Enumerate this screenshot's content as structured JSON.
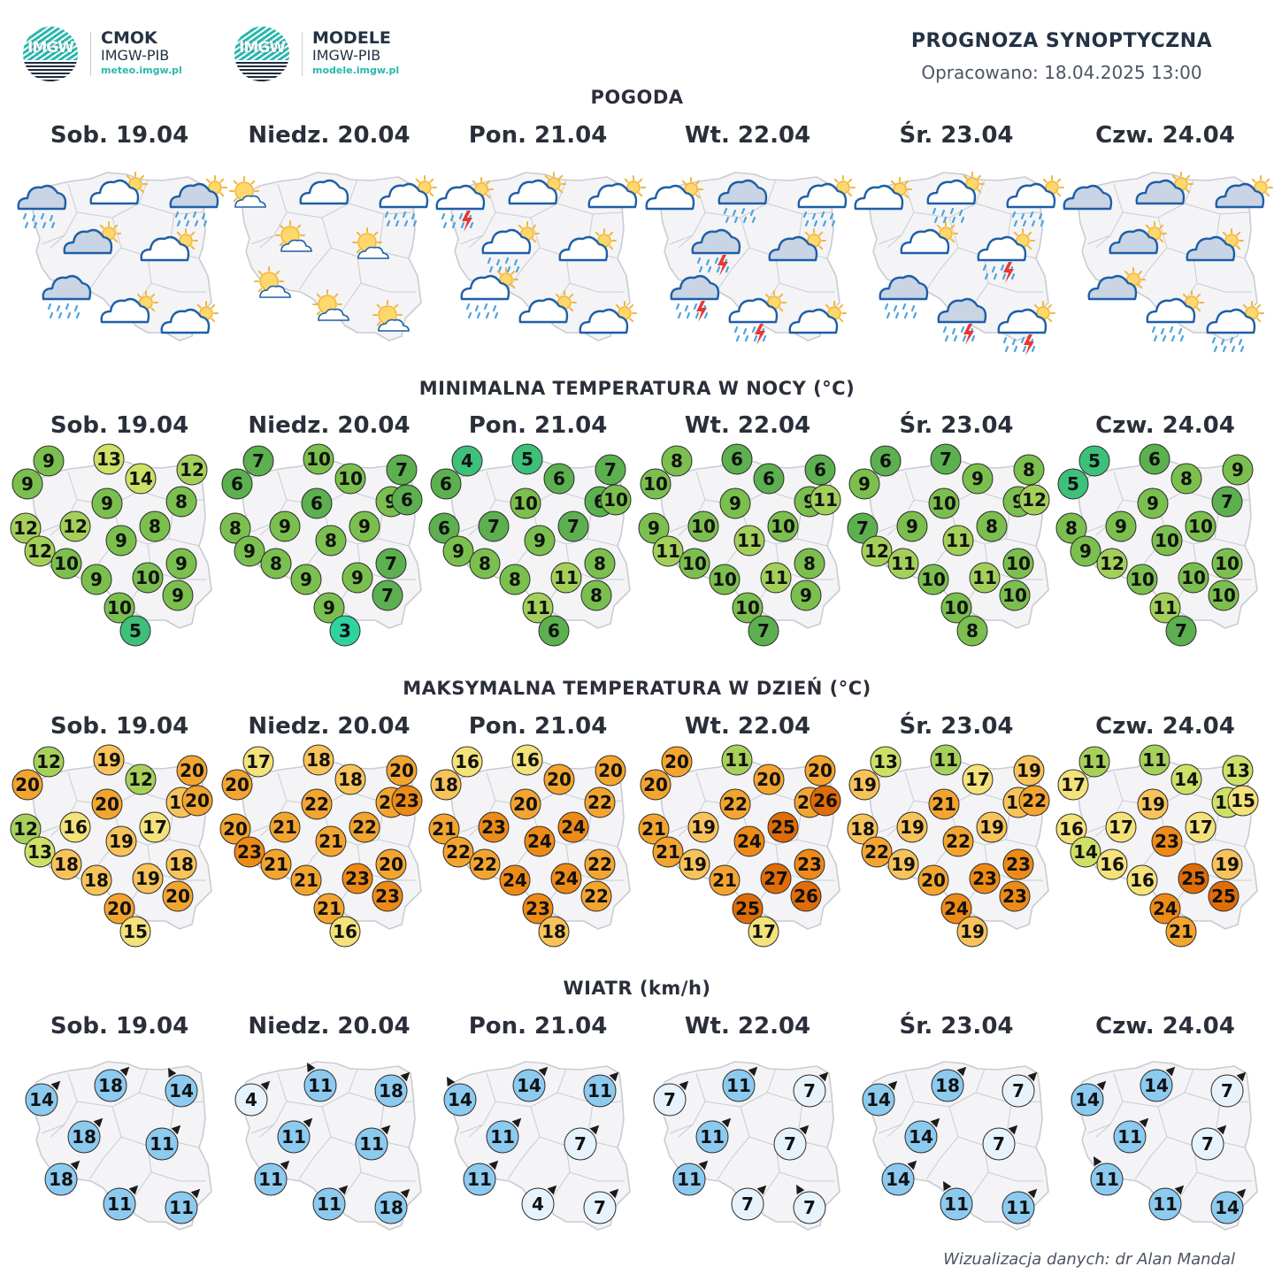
{
  "logos": [
    {
      "mark": "IMGW",
      "title": "CMOK",
      "subtitle": "IMGW-PIB",
      "url": "meteo.imgw.pl"
    },
    {
      "mark": "IMGW",
      "title": "MODELE",
      "subtitle": "IMGW-PIB",
      "url": "modele.imgw.pl"
    }
  ],
  "header": {
    "title": "PROGNOZA SYNOPTYCZNA",
    "prepared": "Opracowano: 18.04.2025 13:00"
  },
  "days": [
    "Sob. 19.04",
    "Niedz. 20.04",
    "Pon. 21.04",
    "Wt. 22.04",
    "Śr. 23.04",
    "Czw. 24.04"
  ],
  "sections": {
    "weather": "POGODA",
    "tmin": "MINIMALNA TEMPERATURA W NOCY (°C)",
    "tmax": "MAKSYMALNA TEMPERATURA W DZIEŃ (°C)",
    "wind": "WIATR (km/h)"
  },
  "credit": "Wizualizacja danych: dr Alan Mandal",
  "colors": {
    "map_fill": "#f4f4f6",
    "map_border": "#c9ccd2",
    "cloud_light": "#ffffff",
    "cloud_dark": "#c9d4e4",
    "cloud_outline": "#1d5fa8",
    "sun": "#f2b63c",
    "rain": "#4aa3e0",
    "lightning": "#e53935",
    "wind_light": "#e6f3fc",
    "wind_mid": "#8ccaf0",
    "tmin_scale": [
      "#2fd3a0",
      "#3dc07a",
      "#5cb04f",
      "#7bbf4e",
      "#a4d05a",
      "#cfe066"
    ],
    "tmax_scale": [
      "#a7d15a",
      "#cfe066",
      "#f4e27a",
      "#f7c35a",
      "#f3a52f",
      "#ee8a16",
      "#e06c07"
    ]
  },
  "chart_data": [
    {
      "type": "map-icons",
      "section": "POGODA",
      "days": [
        {
          "day": "Sob. 19.04",
          "icons": [
            "cloud-rain-dark",
            "cloud-sun",
            "cloud-sun-rain-dark",
            "cloud-sun-dark",
            "cloud-sun",
            "cloud-rain-dark",
            "cloud-sun",
            "cloud-sun"
          ]
        },
        {
          "day": "Niedz. 20.04",
          "icons": [
            "sun-cloud",
            "cloud",
            "cloud-sun-rain",
            "sun-cloud",
            "sun-cloud",
            "sun-cloud",
            "sun-cloud",
            "sun-cloud"
          ]
        },
        {
          "day": "Pon. 21.04",
          "icons": [
            "cloud-sun-rain-storm",
            "cloud-sun",
            "cloud-sun",
            "cloud-sun-rain",
            "cloud-sun",
            "cloud-sun-rain",
            "cloud-sun",
            "cloud-sun"
          ]
        },
        {
          "day": "Wt. 22.04",
          "icons": [
            "cloud-sun",
            "cloud-rain-dark",
            "cloud-sun-rain",
            "cloud-rain-dark-storm",
            "cloud-sun-dark",
            "cloud-rain-dark-storm",
            "cloud-sun-rain-storm",
            "cloud-sun"
          ]
        },
        {
          "day": "Śr. 23.04",
          "icons": [
            "cloud-sun",
            "cloud-sun-rain",
            "cloud-sun-rain",
            "cloud-sun",
            "cloud-sun-rain-storm",
            "cloud-rain-dark",
            "cloud-rain-dark-storm",
            "cloud-sun-rain-storm"
          ]
        },
        {
          "day": "Czw. 24.04",
          "icons": [
            "cloud-dark",
            "cloud-sun-dark",
            "cloud-sun-dark",
            "cloud-sun-dark",
            "cloud-sun-dark",
            "cloud-sun-dark",
            "cloud-sun-rain",
            "cloud-sun-rain"
          ]
        }
      ]
    },
    {
      "type": "map-values",
      "section": "MINIMALNA TEMPERATURA W NOCY (°C)",
      "unit": "°C",
      "days": [
        {
          "day": "Sob. 19.04",
          "values": [
            9,
            13,
            12,
            9,
            14,
            8,
            9,
            12,
            12,
            8,
            12,
            9,
            9,
            10,
            9,
            10,
            9,
            10,
            5
          ]
        },
        {
          "day": "Niedz. 20.04",
          "values": [
            7,
            10,
            7,
            6,
            10,
            9,
            6,
            8,
            9,
            6,
            9,
            9,
            8,
            7,
            8,
            9,
            9,
            7,
            9,
            3
          ]
        },
        {
          "day": "Pon. 21.04",
          "values": [
            4,
            5,
            7,
            6,
            6,
            6,
            10,
            6,
            7,
            10,
            7,
            9,
            9,
            8,
            8,
            8,
            11,
            8,
            11,
            6
          ]
        },
        {
          "day": "Wt. 22.04",
          "values": [
            8,
            6,
            6,
            10,
            6,
            9,
            9,
            9,
            10,
            11,
            10,
            11,
            11,
            8,
            10,
            10,
            11,
            9,
            10,
            7
          ]
        },
        {
          "day": "Śr. 23.04",
          "values": [
            6,
            7,
            8,
            9,
            9,
            9,
            10,
            7,
            9,
            12,
            8,
            12,
            11,
            10,
            11,
            10,
            11,
            10,
            10,
            8
          ]
        },
        {
          "day": "Czw. 24.04",
          "values": [
            5,
            6,
            9,
            5,
            8,
            7,
            9,
            8,
            9,
            10,
            9,
            10,
            10,
            12,
            10,
            10,
            10,
            11,
            7
          ]
        }
      ]
    },
    {
      "type": "map-values",
      "section": "MAKSYMALNA TEMPERATURA W DZIEŃ (°C)",
      "unit": "°C",
      "days": [
        {
          "day": "Sob. 19.04",
          "values": [
            12,
            19,
            20,
            20,
            12,
            18,
            20,
            12,
            16,
            20,
            17,
            13,
            19,
            18,
            18,
            18,
            19,
            20,
            20,
            15
          ]
        },
        {
          "day": "Niedz. 20.04",
          "values": [
            17,
            18,
            20,
            20,
            18,
            20,
            22,
            20,
            21,
            23,
            22,
            23,
            21,
            20,
            21,
            21,
            23,
            23,
            21,
            16
          ]
        },
        {
          "day": "Pon. 21.04",
          "values": [
            16,
            16,
            20,
            18,
            20,
            22,
            20,
            21,
            23,
            24,
            22,
            24,
            22,
            22,
            24,
            24,
            22,
            23,
            18
          ]
        },
        {
          "day": "Wt. 22.04",
          "values": [
            20,
            11,
            20,
            20,
            20,
            20,
            22,
            21,
            19,
            26,
            25,
            21,
            24,
            23,
            19,
            21,
            27,
            26,
            25,
            17
          ]
        },
        {
          "day": "Śr. 23.04",
          "values": [
            13,
            11,
            19,
            19,
            17,
            19,
            21,
            18,
            19,
            22,
            19,
            22,
            22,
            23,
            19,
            20,
            23,
            23,
            24,
            19
          ]
        },
        {
          "day": "Czw. 24.04",
          "values": [
            11,
            11,
            13,
            17,
            14,
            13,
            19,
            16,
            17,
            15,
            17,
            14,
            23,
            19,
            16,
            16,
            25,
            25,
            24,
            21
          ]
        }
      ]
    },
    {
      "type": "map-wind",
      "section": "WIATR (km/h)",
      "unit": "km/h",
      "days": [
        {
          "day": "Sob. 19.04",
          "values": [
            14,
            18,
            14,
            18,
            11,
            18,
            11,
            11
          ]
        },
        {
          "day": "Niedz. 20.04",
          "values": [
            4,
            11,
            18,
            11,
            11,
            11,
            11,
            18
          ]
        },
        {
          "day": "Pon. 21.04",
          "values": [
            14,
            14,
            11,
            11,
            7,
            11,
            4,
            7
          ]
        },
        {
          "day": "Wt. 22.04",
          "values": [
            7,
            11,
            7,
            11,
            7,
            11,
            7,
            7
          ]
        },
        {
          "day": "Śr. 23.04",
          "values": [
            14,
            18,
            7,
            14,
            7,
            14,
            11,
            11
          ]
        },
        {
          "day": "Czw. 24.04",
          "values": [
            14,
            14,
            7,
            11,
            7,
            11,
            11,
            14
          ]
        }
      ]
    }
  ]
}
